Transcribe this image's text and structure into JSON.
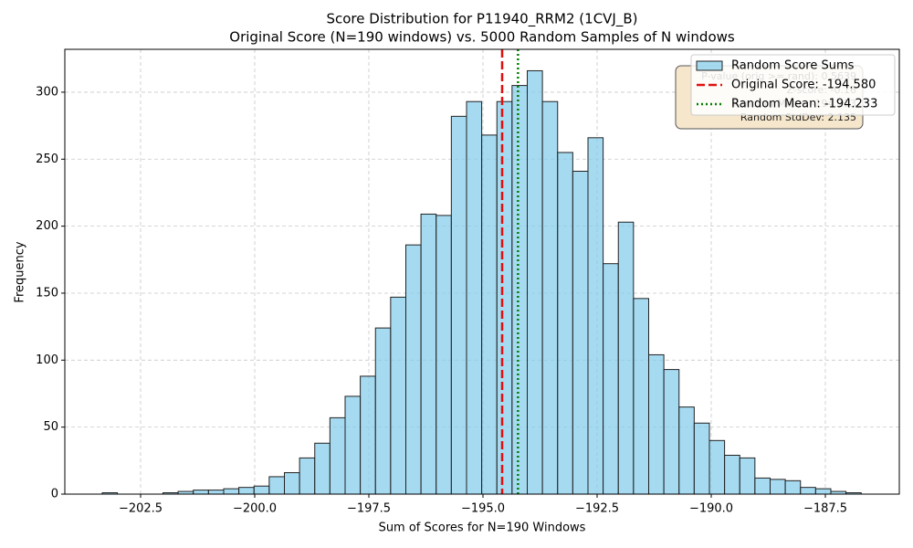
{
  "chart_data": {
    "type": "histogram",
    "title": "Score Distribution for P11940_RRM2 (1CVJ_B)",
    "subtitle": "Original Score (N=190 windows) vs. 5000 Random Samples of N windows",
    "x_label": "Sum of Scores for N=190 Windows",
    "y_label": "Frequency",
    "bins": [
      -203.34,
      -203.008,
      -202.675,
      -202.343,
      -202.01,
      -201.678,
      -201.345,
      -201.013,
      -200.68,
      -200.348,
      -200.015,
      -199.683,
      -199.35,
      -199.018,
      -198.685,
      -198.353,
      -198.02,
      -197.688,
      -197.355,
      -197.023,
      -196.69,
      -196.358,
      -196.025,
      -195.693,
      -195.36,
      -195.028,
      -194.695,
      -194.363,
      -194.03,
      -193.698,
      -193.365,
      -193.033,
      -192.7,
      -192.368,
      -192.035,
      -191.703,
      -191.37,
      -191.038,
      -190.705,
      -190.373,
      -190.04,
      -189.708,
      -189.375,
      -189.043,
      -188.71,
      -188.378,
      -188.045,
      -187.713,
      -187.38,
      -187.048,
      -186.715
    ],
    "counts": [
      1,
      0,
      0,
      0,
      1,
      2,
      3,
      3,
      4,
      5,
      6,
      13,
      16,
      27,
      38,
      57,
      73,
      88,
      124,
      147,
      186,
      209,
      208,
      282,
      293,
      268,
      293,
      305,
      316,
      293,
      255,
      241,
      266,
      172,
      203,
      146,
      104,
      93,
      65,
      53,
      40,
      29,
      27,
      12,
      11,
      10,
      5,
      4,
      2,
      1
    ],
    "name": "Random Score Sums",
    "color": "#87ceeb",
    "edge_color": "#222222",
    "vlines": [
      {
        "name": "Original Score: -194.580",
        "value": -194.58,
        "color": "#e01010",
        "style": "dashed"
      },
      {
        "name": "Random Mean: -194.233",
        "value": -194.233,
        "color": "#008000",
        "style": "dotted"
      }
    ],
    "annotation": [
      "P-value (orig >= rand): 0.5639",
      "Z-score: -0.16",
      "Random Mean: -194.233",
      "Random StdDev: 2.135"
    ],
    "xlim": [
      -204.16,
      -185.88
    ],
    "ylim": [
      0,
      332
    ],
    "xticks": [
      {
        "value": -202.5,
        "label": "−202.5"
      },
      {
        "value": -200,
        "label": "−200.0"
      },
      {
        "value": -197.5,
        "label": "−197.5"
      },
      {
        "value": -195,
        "label": "−195.0"
      },
      {
        "value": -192.5,
        "label": "−192.5"
      },
      {
        "value": -190,
        "label": "−190.0"
      },
      {
        "value": -187.5,
        "label": "−187.5"
      }
    ],
    "yticks": [
      0,
      50,
      100,
      150,
      200,
      250,
      300
    ],
    "grid": true,
    "legend": "upper right"
  }
}
